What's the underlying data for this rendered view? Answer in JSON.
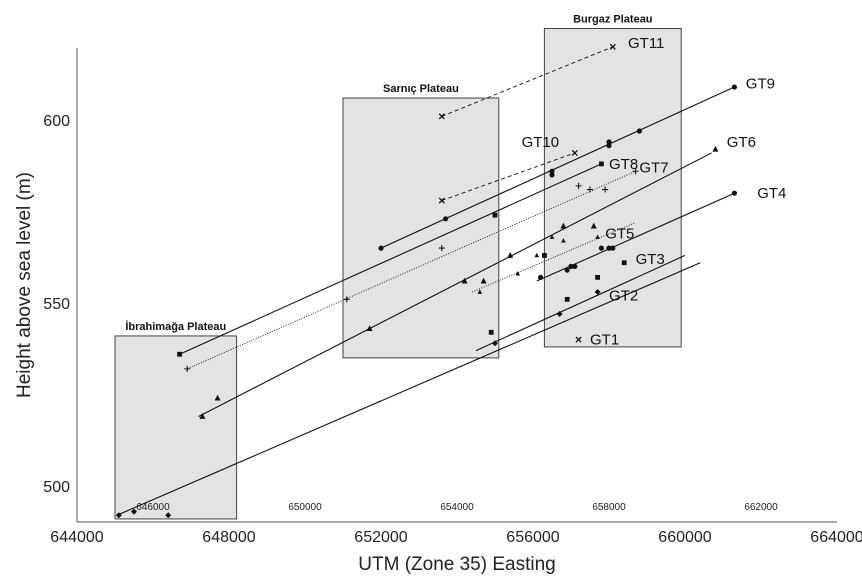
{
  "chart_data": {
    "type": "scatter",
    "xlabel": "UTM (Zone 35) Easting",
    "ylabel": "Height above sea level (m)",
    "xlim": [
      644000,
      664000
    ],
    "ylim": [
      490,
      620
    ],
    "x_major_ticks": [
      {
        "value": 644000,
        "label": "644000"
      },
      {
        "value": 648000,
        "label": "648000"
      },
      {
        "value": 652000,
        "label": "652000"
      },
      {
        "value": 656000,
        "label": "656000"
      },
      {
        "value": 660000,
        "label": "660000"
      },
      {
        "value": 664000,
        "label": "664000"
      }
    ],
    "x_minor_ticks": [
      {
        "value": 646000,
        "label": "646000"
      },
      {
        "value": 650000,
        "label": "650000"
      },
      {
        "value": 654000,
        "label": "654000"
      },
      {
        "value": 658000,
        "label": "658000"
      },
      {
        "value": 662000,
        "label": "662000"
      }
    ],
    "y_ticks": [
      {
        "value": 500,
        "label": "500"
      },
      {
        "value": 550,
        "label": "550"
      },
      {
        "value": 600,
        "label": "600"
      }
    ],
    "grid": false,
    "plateaus": [
      {
        "name": "İbrahimağa Plateau",
        "x_range": [
          645000,
          648200
        ],
        "y_range": [
          491,
          541
        ]
      },
      {
        "name": "Sarnıç Plateau",
        "x_range": [
          651000,
          655100
        ],
        "y_range": [
          535,
          606
        ]
      },
      {
        "name": "Burgaz Plateau",
        "x_range": [
          656300,
          659900
        ],
        "y_range": [
          538,
          625
        ]
      }
    ],
    "series": [
      {
        "name": "GT1",
        "marker": "x",
        "line": "none",
        "points": [
          [
            657200,
            540
          ]
        ],
        "label_at": [
          657500,
          540
        ]
      },
      {
        "name": "GT2",
        "marker": "diamond",
        "line": "solid",
        "trend": [
          [
            645050,
            492
          ],
          [
            660400,
            561
          ]
        ],
        "points": [
          [
            645100,
            492
          ],
          [
            645500,
            493
          ],
          [
            646400,
            492
          ],
          [
            655000,
            539
          ],
          [
            656700,
            547
          ],
          [
            657700,
            553
          ]
        ],
        "label_at": [
          658000,
          552
        ]
      },
      {
        "name": "GT3",
        "marker": "square",
        "line": "solid",
        "trend": [
          [
            654500,
            537
          ],
          [
            660000,
            563
          ]
        ],
        "points": [
          [
            654900,
            542
          ],
          [
            656300,
            563
          ],
          [
            656900,
            551
          ],
          [
            657700,
            557
          ],
          [
            658400,
            561
          ]
        ],
        "label_at": [
          658700,
          562
        ]
      },
      {
        "name": "GT4",
        "marker": "circle",
        "line": "solid",
        "trend": [
          [
            656100,
            556
          ],
          [
            661300,
            580
          ]
        ],
        "points": [
          [
            656200,
            557
          ],
          [
            656900,
            559
          ],
          [
            657000,
            560
          ],
          [
            657100,
            560
          ],
          [
            657800,
            565
          ],
          [
            658000,
            565
          ],
          [
            658100,
            565
          ],
          [
            661300,
            580
          ]
        ],
        "label_at": [
          661900,
          580
        ]
      },
      {
        "name": "GT5",
        "marker": "small-triangle",
        "line": "dotted",
        "trend": [
          [
            654400,
            553
          ],
          [
            658700,
            572
          ]
        ],
        "points": [
          [
            654600,
            553
          ],
          [
            655600,
            558
          ],
          [
            656100,
            563
          ],
          [
            656500,
            568
          ],
          [
            656800,
            567
          ],
          [
            657700,
            568
          ]
        ],
        "label_at": [
          657900,
          569
        ]
      },
      {
        "name": "GT6",
        "marker": "triangle",
        "line": "solid",
        "trend": [
          [
            647200,
            519
          ],
          [
            660700,
            591
          ]
        ],
        "points": [
          [
            647300,
            519
          ],
          [
            647700,
            524
          ],
          [
            651700,
            543
          ],
          [
            654200,
            556
          ],
          [
            654700,
            556
          ],
          [
            655400,
            563
          ],
          [
            656800,
            571
          ],
          [
            657600,
            571
          ],
          [
            660800,
            592
          ]
        ],
        "label_at": [
          661100,
          594
        ]
      },
      {
        "name": "GT7",
        "marker": "plus",
        "line": "dotted",
        "trend": [
          [
            646900,
            532
          ],
          [
            658700,
            586
          ]
        ],
        "points": [
          [
            646900,
            532
          ],
          [
            651100,
            551
          ],
          [
            653600,
            565
          ],
          [
            657200,
            582
          ],
          [
            657500,
            581
          ],
          [
            657900,
            581
          ],
          [
            658700,
            586
          ]
        ],
        "label_at": [
          658800,
          587
        ]
      },
      {
        "name": "GT8",
        "marker": "square",
        "line": "solid",
        "trend": [
          [
            646700,
            536
          ],
          [
            657800,
            588
          ]
        ],
        "points": [
          [
            646700,
            536
          ],
          [
            655000,
            574
          ],
          [
            657800,
            588
          ]
        ],
        "label_at": [
          658000,
          588
        ]
      },
      {
        "name": "GT9",
        "marker": "circle",
        "line": "solid",
        "trend": [
          [
            652000,
            565
          ],
          [
            661300,
            609
          ]
        ],
        "points": [
          [
            652000,
            565
          ],
          [
            653700,
            573
          ],
          [
            656500,
            585
          ],
          [
            656500,
            586
          ],
          [
            658000,
            593
          ],
          [
            658000,
            594
          ],
          [
            658800,
            597
          ],
          [
            661300,
            609
          ]
        ],
        "label_at": [
          661600,
          610
        ]
      },
      {
        "name": "GT10",
        "marker": "x",
        "line": "dashed",
        "trend": [
          [
            653600,
            578
          ],
          [
            657100,
            591
          ]
        ],
        "points": [
          [
            653600,
            578
          ],
          [
            657100,
            591
          ]
        ],
        "label_at": [
          655700,
          594
        ]
      },
      {
        "name": "GT11",
        "marker": "x",
        "line": "dashed",
        "trend": [
          [
            653600,
            601
          ],
          [
            658100,
            620
          ]
        ],
        "points": [
          [
            653600,
            601
          ],
          [
            658100,
            620
          ]
        ],
        "label_at": [
          658500,
          621
        ]
      }
    ]
  }
}
